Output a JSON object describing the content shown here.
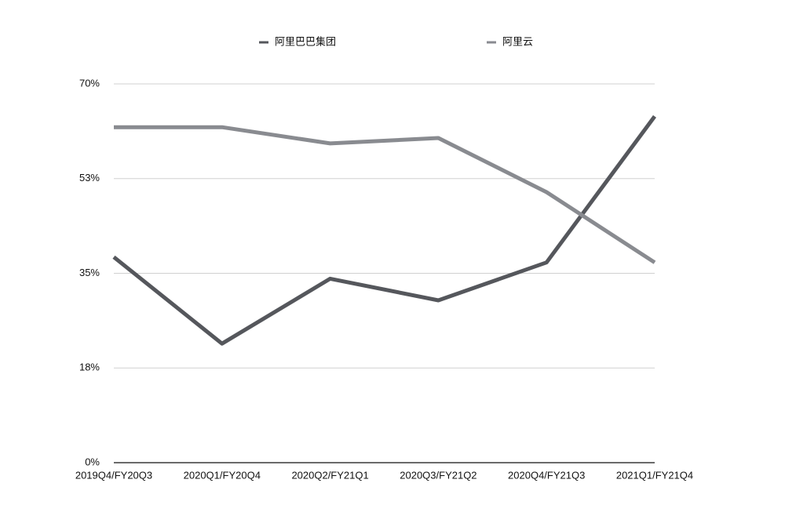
{
  "chart_data": {
    "type": "line",
    "categories": [
      "2019Q4/FY20Q3",
      "2020Q1/FY20Q4",
      "2020Q2/FY21Q1",
      "2020Q3/FY21Q2",
      "2020Q4/FY21Q3",
      "2021Q1/FY21Q4"
    ],
    "series": [
      {
        "name": "阿里巴巴集团",
        "color": "#55575c",
        "values": [
          38,
          22,
          34,
          30,
          37,
          64
        ]
      },
      {
        "name": "阿里云",
        "color": "#898b90",
        "values": [
          62,
          62,
          59,
          60,
          50,
          37
        ]
      }
    ],
    "ylim": [
      0,
      70
    ],
    "yticks": [
      {
        "value": 0,
        "label": "0%"
      },
      {
        "value": 17.5,
        "label": "18%"
      },
      {
        "value": 35,
        "label": "35%"
      },
      {
        "value": 52.5,
        "label": "53%"
      },
      {
        "value": 70,
        "label": "70%"
      }
    ],
    "grid": true,
    "legend": "top"
  }
}
